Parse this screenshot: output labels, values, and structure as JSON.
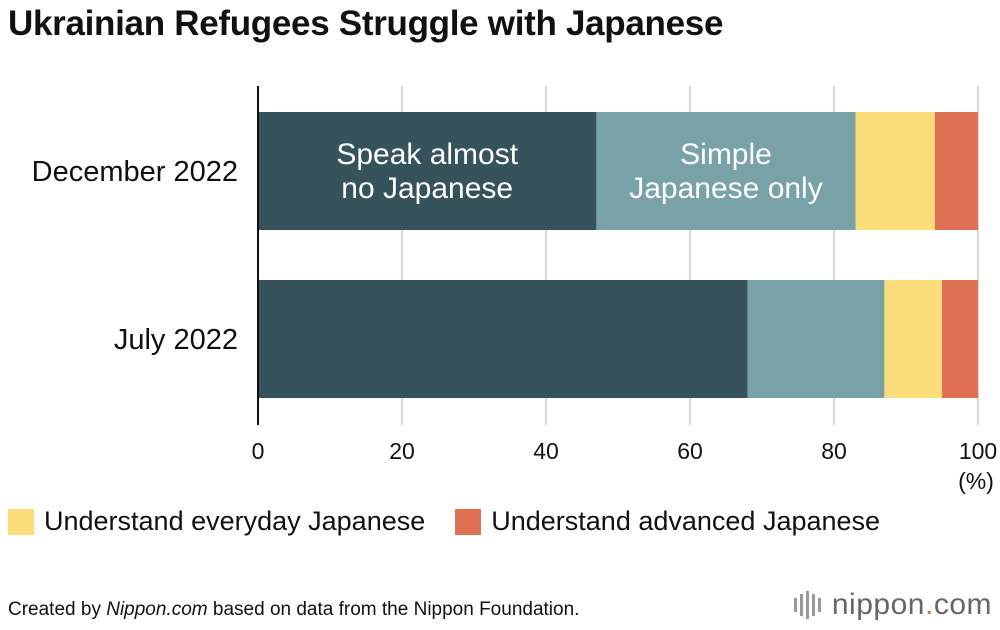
{
  "title": "Ukrainian Refugees Struggle with Japanese",
  "chart_data": {
    "type": "bar",
    "orientation": "horizontal",
    "stacked": true,
    "categories": [
      "December 2022",
      "July 2022"
    ],
    "series": [
      {
        "name": "Speak almost no Japanese",
        "color": "#36525a",
        "values": [
          47,
          68
        ]
      },
      {
        "name": "Simple Japanese only",
        "color": "#78a2a8",
        "values": [
          36,
          19
        ]
      },
      {
        "name": "Understand everyday Japanese",
        "color": "#fbdd7c",
        "values": [
          11,
          8
        ]
      },
      {
        "name": "Understand advanced Japanese",
        "color": "#e07254",
        "values": [
          6,
          5
        ]
      }
    ],
    "inline_labels": [
      {
        "series": 0,
        "lines": [
          "Speak almost",
          "no Japanese"
        ]
      },
      {
        "series": 1,
        "lines": [
          "Simple",
          "Japanese only"
        ]
      }
    ],
    "xlim": [
      0,
      100
    ],
    "xticks": [
      0,
      20,
      40,
      60,
      80,
      100
    ],
    "xunit": "(%)",
    "grid": true
  },
  "legend": [
    {
      "label": "Understand everyday Japanese",
      "color": "#fbdd7c"
    },
    {
      "label": "Understand advanced Japanese",
      "color": "#e07254"
    }
  ],
  "footer": {
    "prefix": "Created by ",
    "source": "Nippon.com",
    "suffix": " based on data from the Nippon Foundation."
  },
  "brand": {
    "name": "nippon",
    "dot": ".",
    "tld": "com"
  }
}
